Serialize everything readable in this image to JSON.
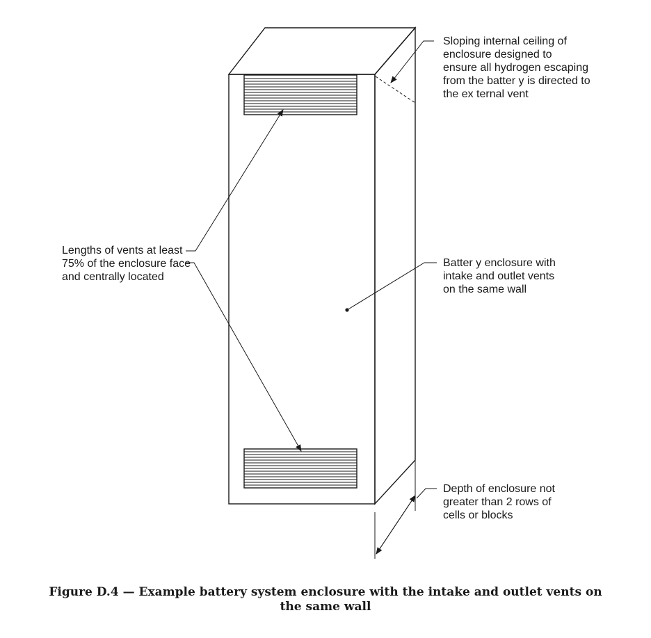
{
  "labels": {
    "ceiling": [
      "Sloping  internal  ceiling  of",
      "enclosure designed to",
      "ensure  all  hydrogen  escaping",
      "from the batter y is directed to",
      "the ex ternal vent"
    ],
    "vents": [
      "Lengths of vents at least",
      "75% of the enclosure face",
      "and centrally located"
    ],
    "enclosure": [
      "Batter y enclosure with",
      "intake and outlet vents",
      "on the same wall"
    ],
    "depth": [
      "Depth of enclosure not",
      "greater than 2 rows of",
      "cells or blocks"
    ]
  },
  "caption": {
    "line1": "Figure D.4 — Example battery system enclosure with the intake and outlet vents on",
    "line2": "the same wall"
  }
}
